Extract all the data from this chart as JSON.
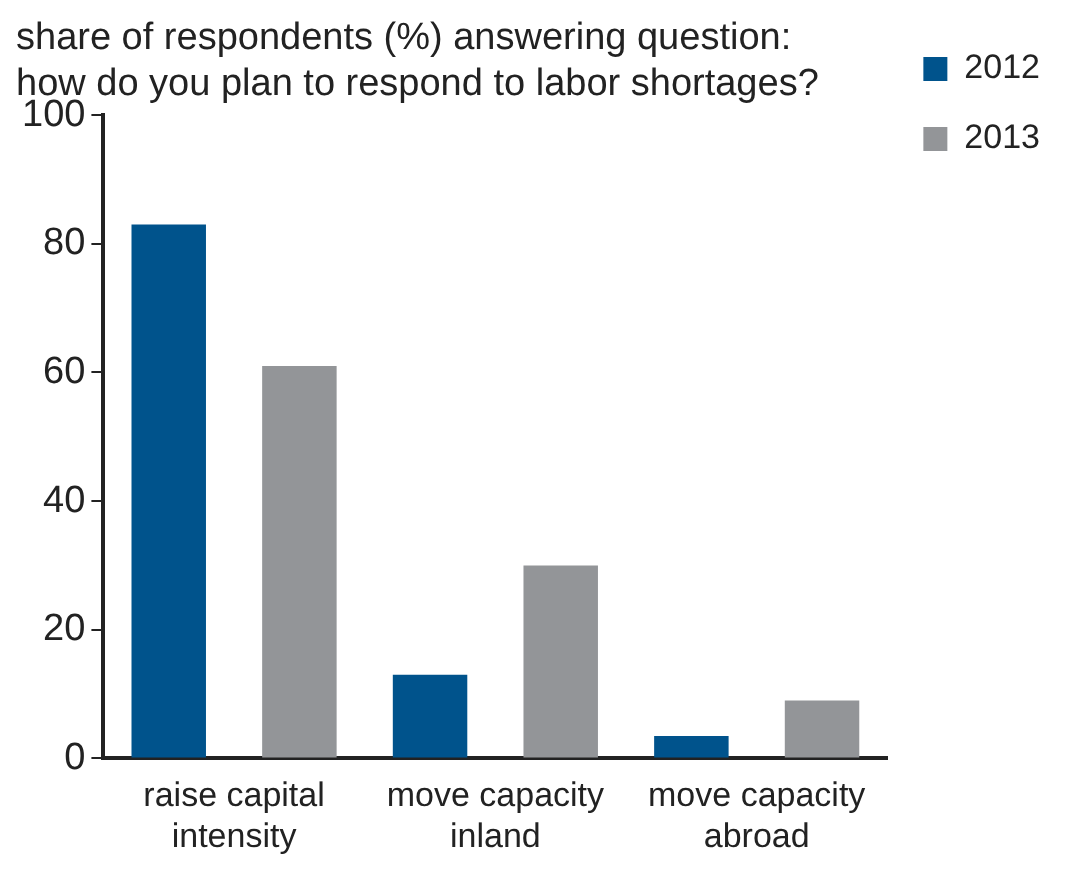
{
  "chart_data": {
    "type": "bar",
    "title": "share of respondents (%) answering question:\nhow do you plan to respond to labor shortages?",
    "categories": [
      "raise capital intensity",
      "move capacity inland",
      "move capacity abroad"
    ],
    "series": [
      {
        "name": "2012",
        "color": "#00538c",
        "values": [
          83,
          13,
          3.5
        ]
      },
      {
        "name": "2013",
        "color": "#939598",
        "values": [
          61,
          30,
          9
        ]
      }
    ],
    "ylim": [
      0,
      100
    ],
    "yticks": [
      0,
      20,
      40,
      60,
      80,
      100
    ],
    "grid": false,
    "legend": "top right"
  }
}
